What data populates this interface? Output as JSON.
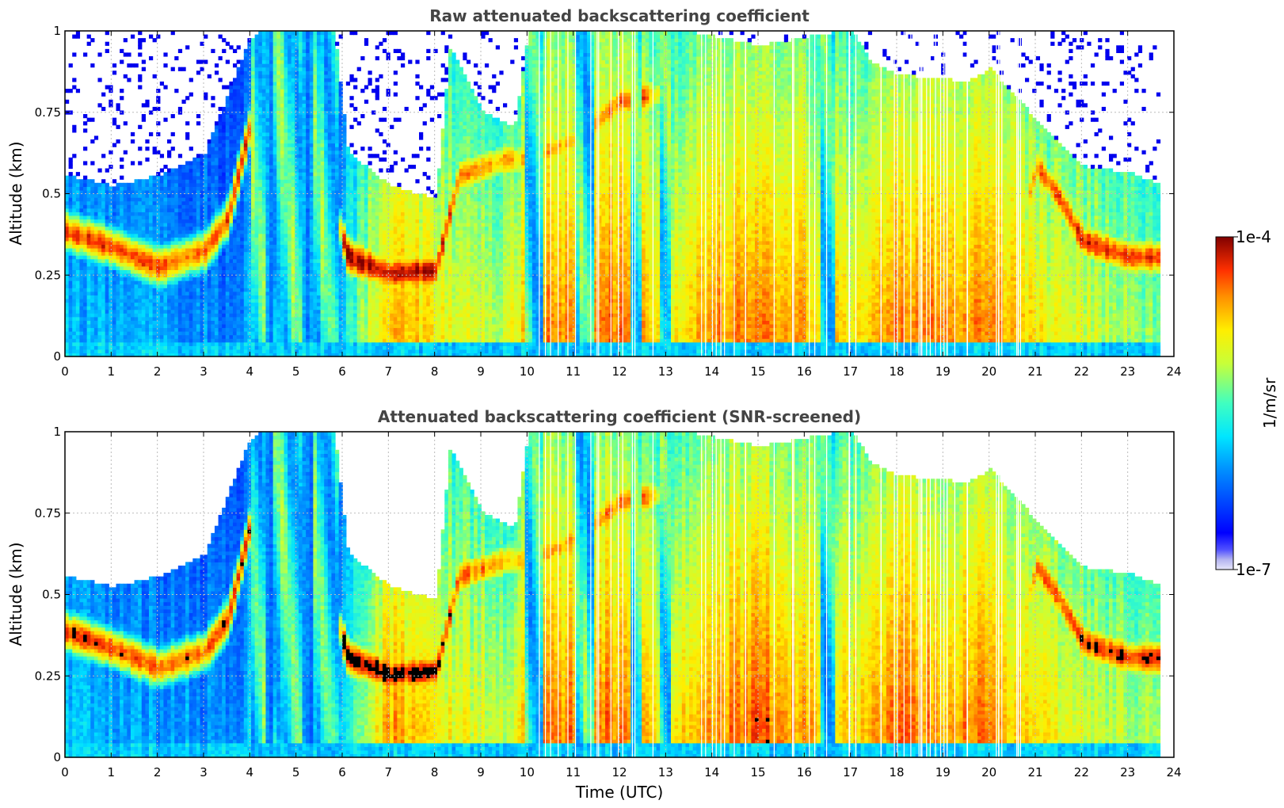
{
  "chart_data": [
    {
      "type": "heatmap",
      "title": "Raw attenuated backscattering coefficient",
      "xlabel": "",
      "ylabel": "Altitude (km)",
      "xlim": [
        0,
        24
      ],
      "ylim": [
        0,
        1
      ],
      "x_ticks": [
        "0",
        "1",
        "2",
        "3",
        "4",
        "5",
        "6",
        "7",
        "8",
        "9",
        "10",
        "11",
        "12",
        "13",
        "14",
        "15",
        "16",
        "17",
        "18",
        "19",
        "20",
        "21",
        "22",
        "23",
        "24"
      ],
      "y_ticks": [
        "0",
        "0.25",
        "0.5",
        "0.75",
        "1"
      ],
      "grid": true,
      "screened": false
    },
    {
      "type": "heatmap",
      "title": "Attenuated backscattering coefficient (SNR-screened)",
      "xlabel": "Time (UTC)",
      "ylabel": "Altitude (km)",
      "xlim": [
        0,
        24
      ],
      "ylim": [
        0,
        1
      ],
      "x_ticks": [
        "0",
        "1",
        "2",
        "3",
        "4",
        "5",
        "6",
        "7",
        "8",
        "9",
        "10",
        "11",
        "12",
        "13",
        "14",
        "15",
        "16",
        "17",
        "18",
        "19",
        "20",
        "21",
        "22",
        "23",
        "24"
      ],
      "y_ticks": [
        "0",
        "0.25",
        "0.5",
        "0.75",
        "1"
      ],
      "grid": true,
      "screened": true
    }
  ],
  "colorbar": {
    "label": "1/m/sr",
    "max_label": "1e-4",
    "min_label": "1e-7",
    "colormap": "jet"
  },
  "colors": {
    "title": "#444444",
    "saturated": "#000000"
  }
}
